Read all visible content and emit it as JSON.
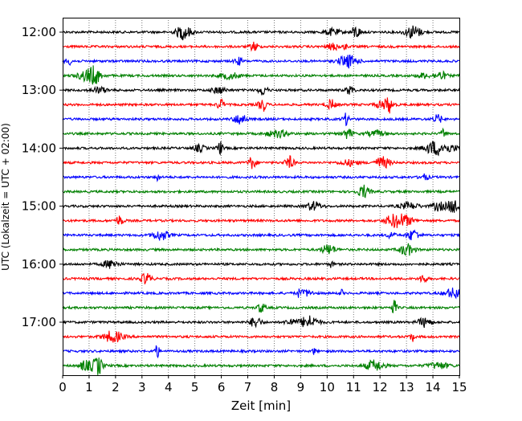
{
  "chart_data": {
    "type": "line",
    "title": "",
    "xlabel": "Zeit  [min]",
    "ylabel": "UTC (Lokalzeit = UTC + 02:00)",
    "x_ticks": [
      "0",
      "1",
      "2",
      "3",
      "4",
      "5",
      "6",
      "7",
      "8",
      "9",
      "10",
      "11",
      "12",
      "13",
      "14",
      "15"
    ],
    "x_range": [
      0,
      15
    ],
    "y_tick_labels": [
      "12:00",
      "13:00",
      "14:00",
      "15:00",
      "16:00",
      "17:00"
    ],
    "trace_interval_minutes": 15,
    "trace_count": 24,
    "trace_colors": [
      "#000000",
      "#ff0000",
      "#0000ff",
      "#008000"
    ],
    "grid": "vertical-dotted",
    "traces": [
      {
        "start": "12:00",
        "color": "#000000"
      },
      {
        "start": "12:15",
        "color": "#ff0000"
      },
      {
        "start": "12:30",
        "color": "#0000ff"
      },
      {
        "start": "12:45",
        "color": "#008000"
      },
      {
        "start": "13:00",
        "color": "#000000"
      },
      {
        "start": "13:15",
        "color": "#ff0000"
      },
      {
        "start": "13:30",
        "color": "#0000ff"
      },
      {
        "start": "13:45",
        "color": "#008000"
      },
      {
        "start": "14:00",
        "color": "#000000"
      },
      {
        "start": "14:15",
        "color": "#ff0000"
      },
      {
        "start": "14:30",
        "color": "#0000ff"
      },
      {
        "start": "14:45",
        "color": "#008000"
      },
      {
        "start": "15:00",
        "color": "#000000"
      },
      {
        "start": "15:15",
        "color": "#ff0000"
      },
      {
        "start": "15:30",
        "color": "#0000ff"
      },
      {
        "start": "15:45",
        "color": "#008000"
      },
      {
        "start": "16:00",
        "color": "#000000"
      },
      {
        "start": "16:15",
        "color": "#ff0000"
      },
      {
        "start": "16:30",
        "color": "#0000ff"
      },
      {
        "start": "16:45",
        "color": "#008000"
      },
      {
        "start": "17:00",
        "color": "#000000"
      },
      {
        "start": "17:15",
        "color": "#ff0000"
      },
      {
        "start": "17:30",
        "color": "#0000ff"
      },
      {
        "start": "17:45",
        "color": "#008000"
      }
    ]
  }
}
